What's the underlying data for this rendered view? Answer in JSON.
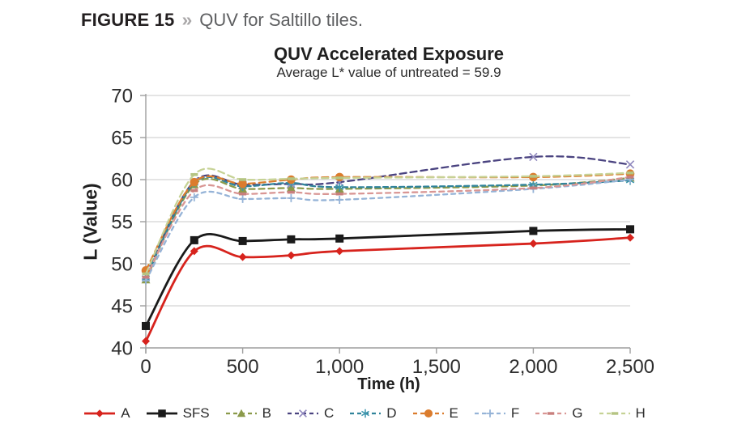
{
  "figure": {
    "label": "FIGURE 15",
    "separator": "»",
    "caption": "QUV for Saltillo tiles."
  },
  "chart_data": {
    "type": "line",
    "title": "QUV Accelerated Exposure",
    "subtitle": "Average L* value of untreated = 59.9",
    "xlabel": "Time (h)",
    "ylabel": "L (Value)",
    "grid": "horizontal",
    "legend_position": "bottom",
    "x": [
      0,
      250,
      500,
      750,
      1000,
      2000,
      2500
    ],
    "x_axis": {
      "min": 0,
      "max": 2500,
      "tick_values": [
        0,
        500,
        1000,
        1500,
        2000,
        2500
      ],
      "tick_labels": [
        "0",
        "500",
        "1,000",
        "1,500",
        "2,000",
        "2,500"
      ]
    },
    "y_axis": {
      "min": 40,
      "max": 70,
      "tick_step": 5,
      "tick_values": [
        70,
        65,
        60,
        55,
        50,
        45,
        40
      ],
      "tick_labels": [
        "70",
        "65",
        "60",
        "55",
        "50",
        "45",
        "40"
      ]
    },
    "style": {
      "grid_color": "#c9c9c9",
      "axis_color": "#9e9e9e",
      "tick_label_color": "#2e2e2e"
    },
    "series": [
      {
        "name": "A",
        "color": "#d7231d",
        "line": "solid",
        "marker": "diamond",
        "values": [
          40.8,
          51.5,
          50.8,
          51.0,
          51.5,
          52.4,
          53.1
        ]
      },
      {
        "name": "SFS",
        "color": "#1a1a1a",
        "line": "solid",
        "marker": "square",
        "values": [
          42.6,
          52.8,
          52.7,
          52.9,
          53.0,
          53.9,
          54.1
        ]
      },
      {
        "name": "B",
        "color": "#8b9a4b",
        "line": "dashed",
        "marker": "triangle",
        "values": [
          48.1,
          59.4,
          58.9,
          59.0,
          58.9,
          59.3,
          60.2
        ]
      },
      {
        "name": "C",
        "color": "#4a4380",
        "marker_color": "#8f87bd",
        "line": "dashed",
        "marker": "x",
        "values": [
          48.6,
          59.8,
          59.4,
          59.5,
          59.7,
          62.7,
          61.8
        ]
      },
      {
        "name": "D",
        "color": "#31849b",
        "marker_color": "#3d95ad",
        "line": "dashed",
        "marker": "asterisk",
        "values": [
          48.3,
          59.6,
          59.2,
          59.6,
          59.1,
          59.4,
          59.9
        ]
      },
      {
        "name": "E",
        "color": "#db7c2d",
        "line": "dashed",
        "marker": "circle",
        "values": [
          49.2,
          59.7,
          59.5,
          60.0,
          60.3,
          60.3,
          60.7
        ]
      },
      {
        "name": "F",
        "color": "#95b3d7",
        "line": "dashed",
        "marker": "plus",
        "values": [
          48.0,
          57.9,
          57.7,
          57.8,
          57.6,
          58.9,
          60.0
        ]
      },
      {
        "name": "G",
        "color": "#d99694",
        "marker_color": "#c87f7d",
        "line": "dashed",
        "marker": "dash",
        "values": [
          48.4,
          58.7,
          58.3,
          58.5,
          58.3,
          59.0,
          60.3
        ]
      },
      {
        "name": "H",
        "color": "#c6d295",
        "marker_color": "#b5c482",
        "line": "dashed",
        "marker": "dash",
        "values": [
          48.8,
          60.6,
          60.0,
          60.1,
          60.2,
          60.4,
          60.8
        ]
      }
    ]
  }
}
